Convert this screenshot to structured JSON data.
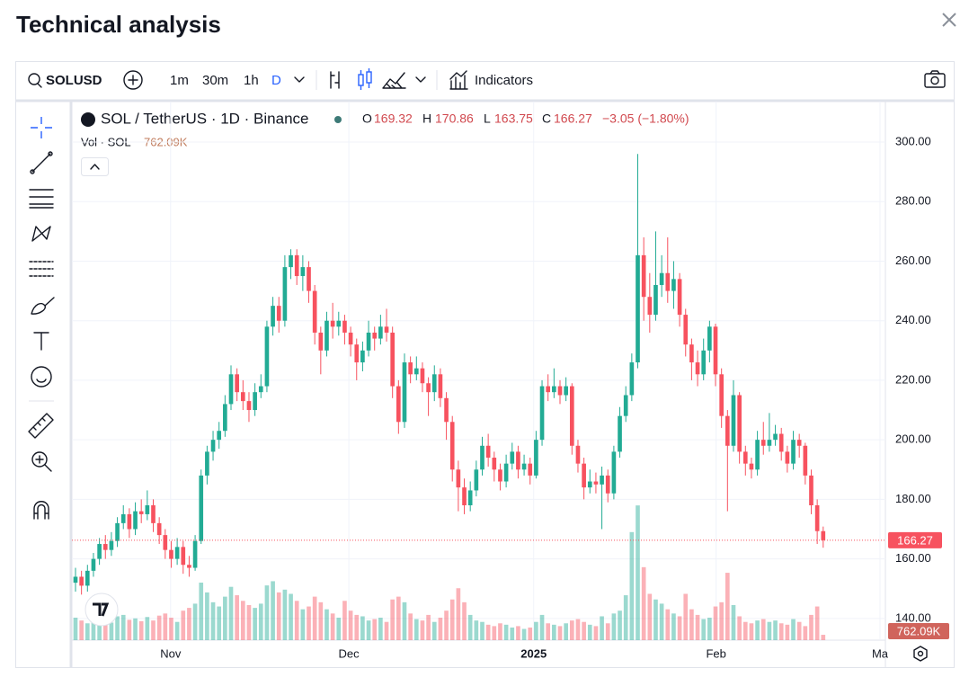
{
  "header": {
    "title": "Technical analysis"
  },
  "toolbar": {
    "symbol": "SOLUSD",
    "intervals": [
      "1m",
      "30m",
      "1h",
      "D"
    ],
    "indicators": "Indicators"
  },
  "chart_data": {
    "type": "candlestick",
    "symbol_label": "SOL / TetherUS · 1D · Binance",
    "open_label": "O",
    "high_label": "H",
    "low_label": "L",
    "close_label": "C",
    "change_text": "−3.05 (−1.80%)",
    "volume_title": "Vol · SOL",
    "last_volume_label": "762.09K",
    "up_color": "#22ab94",
    "down_color": "#f7525f",
    "grid": true,
    "xlim": [
      -0.6,
      135.4
    ],
    "xticks": [
      {
        "value": 15.9,
        "label": "Nov"
      },
      {
        "value": 45.7,
        "label": "Dec"
      },
      {
        "value": 76.6,
        "label": "2025"
      },
      {
        "value": 107.1,
        "label": "Feb"
      },
      {
        "value": 134.5,
        "label": "Ma"
      }
    ],
    "ylim": [
      132.7,
      313.6
    ],
    "yticks": [
      {
        "value": 140,
        "label": "140.00"
      },
      {
        "value": 160,
        "label": "160.00"
      },
      {
        "value": 180,
        "label": "180.00"
      },
      {
        "value": 200,
        "label": "200.00"
      },
      {
        "value": 220,
        "label": "220.00"
      },
      {
        "value": 240,
        "label": "240.00"
      },
      {
        "value": 260,
        "label": "260.00"
      },
      {
        "value": 280,
        "label": "280.00"
      },
      {
        "value": 300,
        "label": "300.00"
      }
    ],
    "volume_lim": [
      0,
      20500000
    ],
    "open": [
      152,
      154,
      151,
      156,
      160,
      165,
      163,
      166,
      172,
      175,
      170,
      176,
      175,
      178,
      172,
      168,
      163,
      160,
      164,
      158,
      157,
      166,
      188,
      196,
      200,
      203,
      212,
      222,
      216,
      213,
      210,
      216,
      218,
      238,
      245,
      240,
      258,
      262,
      255,
      258,
      250,
      236,
      230,
      240,
      238,
      240,
      236,
      232,
      226,
      230,
      236,
      234,
      238,
      236,
      218,
      206,
      226,
      222,
      224,
      219,
      216,
      222,
      214,
      206,
      190,
      184,
      178,
      183,
      190,
      198,
      194,
      190,
      186,
      192,
      196,
      190,
      192,
      188,
      200,
      218,
      216,
      218,
      215,
      218,
      198,
      192,
      184,
      186,
      185,
      188,
      182,
      196,
      208,
      215,
      226,
      262,
      248,
      242,
      252,
      256,
      250,
      254,
      242,
      232,
      226,
      222,
      230,
      238,
      222,
      208,
      198,
      215,
      196,
      192,
      190,
      200,
      198,
      200,
      202,
      196,
      192,
      200,
      198,
      188,
      178,
      169.32
    ],
    "high": [
      157,
      156,
      158,
      162,
      167,
      168,
      169,
      174,
      178,
      177,
      179,
      180,
      183,
      180,
      174,
      170,
      166,
      167,
      166,
      161,
      168,
      190,
      198,
      203,
      206,
      215,
      225,
      224,
      220,
      216,
      219,
      222,
      240,
      248,
      248,
      262,
      264,
      264,
      262,
      260,
      252,
      238,
      243,
      246,
      243,
      242,
      238,
      234,
      233,
      240,
      238,
      242,
      244,
      238,
      220,
      229,
      228,
      228,
      226,
      221,
      225,
      224,
      216,
      208,
      193,
      187,
      186,
      193,
      201,
      202,
      196,
      192,
      195,
      199,
      198,
      195,
      194,
      203,
      220,
      222,
      224,
      220,
      221,
      219,
      200,
      194,
      190,
      189,
      191,
      190,
      198,
      211,
      218,
      229,
      296,
      268,
      256,
      270,
      262,
      268,
      260,
      256,
      244,
      234,
      230,
      234,
      240,
      239,
      224,
      210,
      220,
      216,
      198,
      194,
      203,
      206,
      209,
      205,
      204,
      198,
      203,
      202,
      199,
      190,
      180,
      170.86
    ],
    "low": [
      149,
      148,
      149,
      154,
      158,
      160,
      161,
      164,
      170,
      167,
      168,
      172,
      173,
      169,
      165,
      160,
      157,
      158,
      155,
      154,
      156,
      165,
      185,
      193,
      197,
      201,
      210,
      213,
      210,
      206,
      208,
      214,
      216,
      235,
      236,
      238,
      254,
      252,
      250,
      246,
      232,
      222,
      228,
      234,
      235,
      232,
      228,
      220,
      223,
      228,
      230,
      232,
      233,
      214,
      202,
      204,
      219,
      220,
      216,
      208,
      213,
      211,
      200,
      186,
      176,
      175,
      176,
      181,
      188,
      191,
      186,
      183,
      184,
      190,
      187,
      188,
      185,
      187,
      198,
      213,
      214,
      212,
      213,
      195,
      189,
      180,
      182,
      182,
      170,
      179,
      180,
      194,
      206,
      213,
      224,
      240,
      236,
      240,
      248,
      246,
      244,
      238,
      228,
      220,
      218,
      220,
      226,
      218,
      204,
      176,
      196,
      192,
      188,
      187,
      188,
      195,
      196,
      198,
      193,
      189,
      190,
      194,
      185,
      175,
      165,
      163.75
    ],
    "close": [
      154,
      151,
      156,
      160,
      165,
      163,
      166,
      172,
      175,
      170,
      176,
      175,
      178,
      172,
      168,
      163,
      160,
      164,
      158,
      157,
      166,
      188,
      196,
      200,
      203,
      212,
      222,
      216,
      213,
      210,
      216,
      218,
      238,
      245,
      240,
      258,
      262,
      255,
      258,
      250,
      236,
      230,
      240,
      238,
      240,
      236,
      232,
      226,
      230,
      236,
      234,
      238,
      236,
      218,
      206,
      226,
      222,
      224,
      219,
      216,
      222,
      214,
      206,
      190,
      184,
      178,
      183,
      190,
      198,
      194,
      190,
      186,
      192,
      196,
      190,
      192,
      188,
      200,
      218,
      216,
      218,
      215,
      218,
      198,
      192,
      184,
      186,
      185,
      188,
      182,
      196,
      208,
      215,
      226,
      262,
      248,
      242,
      252,
      256,
      250,
      254,
      242,
      232,
      226,
      222,
      230,
      238,
      222,
      208,
      198,
      215,
      196,
      192,
      190,
      200,
      198,
      200,
      202,
      196,
      192,
      200,
      198,
      188,
      178,
      169.32,
      166.27
    ],
    "volume": [
      3200000,
      2800000,
      2400000,
      2600000,
      3000000,
      2200000,
      2500000,
      3400000,
      3600000,
      2900000,
      3100000,
      2700000,
      3300000,
      2800000,
      3500000,
      3800000,
      3200000,
      2600000,
      4200000,
      4600000,
      5200000,
      8200000,
      6800000,
      5400000,
      4800000,
      6200000,
      7600000,
      6400000,
      5600000,
      5000000,
      4600000,
      5200000,
      7800000,
      8400000,
      6800000,
      7200000,
      6600000,
      5600000,
      4400000,
      4800000,
      6200000,
      5400000,
      4400000,
      3800000,
      3200000,
      5600000,
      4200000,
      3600000,
      3400000,
      2800000,
      3000000,
      3200000,
      2600000,
      5800000,
      6200000,
      5400000,
      3800000,
      3000000,
      2800000,
      3600000,
      2600000,
      3200000,
      4200000,
      5800000,
      7400000,
      5400000,
      3600000,
      2800000,
      2600000,
      2200000,
      2000000,
      2400000,
      2200000,
      1800000,
      2000000,
      1600000,
      1800000,
      2600000,
      3600000,
      2400000,
      2200000,
      2000000,
      2400000,
      2800000,
      3000000,
      2600000,
      2200000,
      2000000,
      3400000,
      2400000,
      3800000,
      4200000,
      6400000,
      15400000,
      19200000,
      10400000,
      6600000,
      5800000,
      5200000,
      4400000,
      3800000,
      3400000,
      6600000,
      4400000,
      3600000,
      3000000,
      3200000,
      4800000,
      5400000,
      9600000,
      5000000,
      3400000,
      2600000,
      2400000,
      2800000,
      3000000,
      2600000,
      2800000,
      2400000,
      2200000,
      3000000,
      2600000,
      2000000,
      3600000,
      4800000,
      762090
    ]
  }
}
